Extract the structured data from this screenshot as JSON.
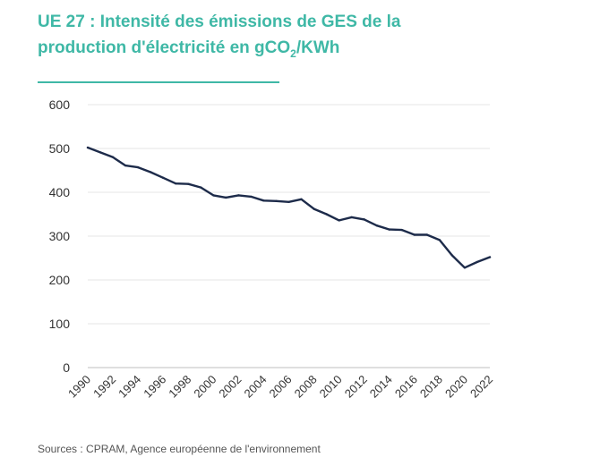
{
  "title": {
    "part1": "UE 27 : Intensité des émissions de GES de la",
    "part2": "production d'électricité en gCO",
    "subscript": "2",
    "part3": "/KWh"
  },
  "source": "Sources : CPRAM, Agence européenne de l'environnement",
  "colors": {
    "accent": "#3fb8a6",
    "line": "#1d2b4a",
    "axis": "#333333",
    "grid": "#e6e6e6"
  },
  "chart_data": {
    "type": "line",
    "x": [
      1990,
      1991,
      1992,
      1993,
      1994,
      1995,
      1996,
      1997,
      1998,
      1999,
      2000,
      2001,
      2002,
      2003,
      2004,
      2005,
      2006,
      2007,
      2008,
      2009,
      2010,
      2011,
      2012,
      2013,
      2014,
      2015,
      2016,
      2017,
      2018,
      2019,
      2020,
      2021,
      2022
    ],
    "y": [
      502,
      491,
      480,
      461,
      457,
      446,
      433,
      420,
      419,
      411,
      393,
      388,
      393,
      390,
      381,
      380,
      378,
      384,
      362,
      350,
      336,
      343,
      338,
      324,
      315,
      314,
      303,
      303,
      291,
      256,
      228,
      241,
      252
    ],
    "xticks": [
      "1990",
      "1992",
      "1994",
      "1996",
      "1998",
      "2000",
      "2002",
      "2004",
      "2006",
      "2008",
      "2010",
      "2012",
      "2014",
      "2016",
      "2018",
      "2020",
      "2022"
    ],
    "yticks": [
      "0",
      "100",
      "200",
      "300",
      "400",
      "500",
      "600"
    ],
    "ylim": [
      0,
      600
    ],
    "xlim": [
      1990,
      2022
    ],
    "grid": true
  }
}
